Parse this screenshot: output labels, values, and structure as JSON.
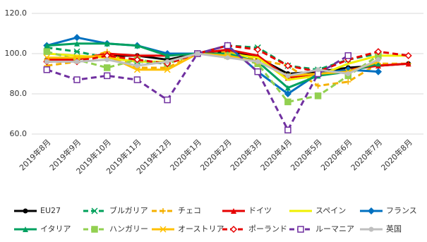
{
  "chart_data": {
    "type": "line",
    "categories": [
      "2019年8月",
      "2019年9月",
      "2019年10月",
      "2019年11月",
      "2019年12月",
      "2020年1月",
      "2020年2月",
      "2020年3月",
      "2020年4月",
      "2020年5月",
      "2020年6月",
      "2020年7月",
      "2020年8月"
    ],
    "ylim": [
      60,
      120
    ],
    "yticks": [
      {
        "value": 60,
        "label": "60.0"
      },
      {
        "value": 80,
        "label": "80.0"
      },
      {
        "value": 100,
        "label": "100.0"
      },
      {
        "value": 120,
        "label": "120.0"
      }
    ],
    "grid": true,
    "legend": "bottom",
    "series": [
      {
        "name": "EU27",
        "color": "#000000",
        "marker": "circle",
        "dashed": false,
        "values": [
          97,
          98,
          99,
          99,
          97,
          100,
          101,
          98,
          90,
          91,
          93,
          94,
          95
        ]
      },
      {
        "name": "ブルガリア",
        "color": "#00a05a",
        "marker": "x",
        "dashed": true,
        "values": [
          103,
          101,
          98,
          96,
          95,
          100,
          104,
          103,
          94,
          92,
          97,
          100,
          null
        ]
      },
      {
        "name": "チェコ",
        "color": "#f5b000",
        "marker": "plus",
        "dashed": true,
        "values": [
          94,
          96,
          101,
          93,
          93,
          100,
          101,
          97,
          94,
          84,
          86,
          95,
          95
        ]
      },
      {
        "name": "ドイツ",
        "color": "#e60000",
        "marker": "triangle",
        "dashed": false,
        "values": [
          97,
          97,
          100,
          99,
          99,
          100,
          102,
          99,
          88,
          90,
          92,
          94,
          95
        ]
      },
      {
        "name": "スペイン",
        "color": "#f0f000",
        "marker": "none",
        "dashed": false,
        "values": [
          100,
          99,
          98,
          96,
          96,
          100,
          100,
          98,
          87,
          89,
          95,
          99,
          99
        ]
      },
      {
        "name": "フランス",
        "color": "#0070c0",
        "marker": "diamond",
        "dashed": false,
        "values": [
          104,
          108,
          105,
          104,
          100,
          100,
          104,
          91,
          80,
          90,
          92,
          91,
          null
        ]
      },
      {
        "name": "イタリア",
        "color": "#00a060",
        "marker": "triangle",
        "dashed": false,
        "values": [
          104,
          105,
          105,
          104,
          99,
          100,
          100,
          96,
          83,
          89,
          91,
          95,
          null
        ]
      },
      {
        "name": "ハンガリー",
        "color": "#92d050",
        "marker": "square",
        "dashed": true,
        "values": [
          101,
          97,
          93,
          97,
          95,
          100,
          99,
          95,
          76,
          79,
          89,
          99,
          null
        ]
      },
      {
        "name": "オーストリア",
        "color": "#ffc000",
        "marker": "x",
        "dashed": false,
        "values": [
          98,
          98,
          99,
          92,
          92,
          100,
          99,
          96,
          89,
          90,
          91,
          96,
          null
        ]
      },
      {
        "name": "ポーランド",
        "color": "#e60000",
        "marker": "open-diamond",
        "dashed": true,
        "values": [
          96,
          96,
          99,
          97,
          95,
          100,
          104,
          102,
          94,
          91,
          97,
          101,
          99
        ]
      },
      {
        "name": "ルーマニア",
        "color": "#7030a0",
        "marker": "open-square",
        "dashed": true,
        "values": [
          92,
          87,
          89,
          87,
          77,
          100,
          104,
          91,
          62,
          90,
          99,
          null,
          null
        ]
      },
      {
        "name": "英国",
        "color": "#bfbfbf",
        "marker": "circle",
        "dashed": false,
        "values": [
          96,
          96,
          97,
          94,
          96,
          100,
          98,
          96,
          89,
          92,
          90,
          97,
          null
        ]
      }
    ]
  }
}
